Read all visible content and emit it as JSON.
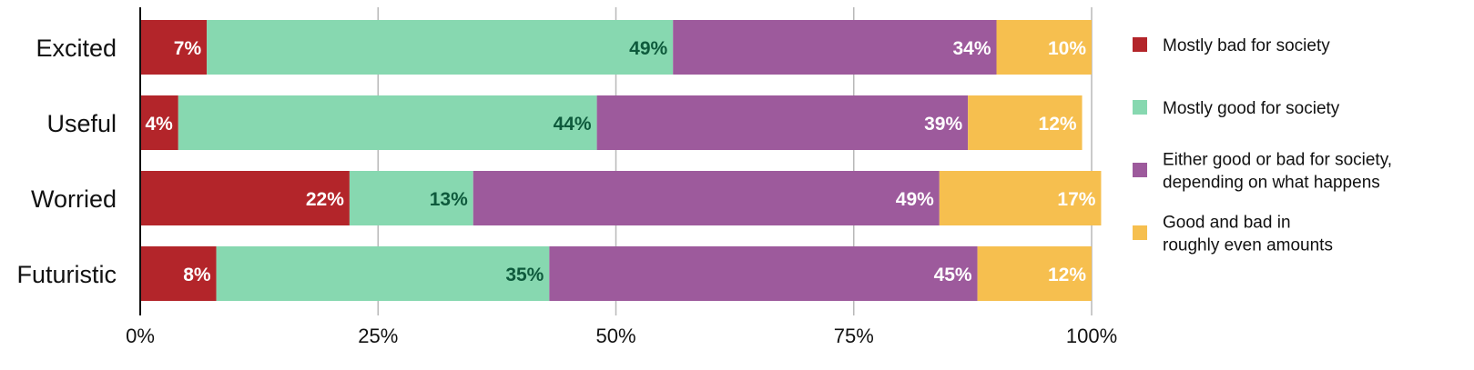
{
  "chart_data": {
    "type": "bar",
    "orientation": "horizontal",
    "stacked": true,
    "title": "",
    "xlabel": "",
    "ylabel": "",
    "xlim": [
      0,
      100
    ],
    "x_ticks": [
      "0%",
      "25%",
      "50%",
      "75%",
      "100%"
    ],
    "x_tick_values": [
      0,
      25,
      50,
      75,
      100
    ],
    "grid": true,
    "legend_position": "right",
    "categories": [
      "Excited",
      "Useful",
      "Worried",
      "Futuristic"
    ],
    "series": [
      {
        "name": "Mostly bad for society",
        "color": "#b3252a",
        "label_color": "#ffffff",
        "values": [
          7,
          4,
          22,
          8
        ],
        "labels": [
          "7%",
          "4%",
          "22%",
          "8%"
        ]
      },
      {
        "name": "Mostly good for society",
        "color": "#87d8b0",
        "label_color": "#0e5a3c",
        "values": [
          49,
          44,
          13,
          35
        ],
        "labels": [
          "49%",
          "44%",
          "13%",
          "35%"
        ]
      },
      {
        "name": "Either good or bad for society, depending on what happens",
        "legend_lines": [
          "Either good or bad for society,",
          "depending on what happens"
        ],
        "color": "#9d5a9c",
        "label_color": "#ffffff",
        "values": [
          34,
          39,
          49,
          45
        ],
        "labels": [
          "34%",
          "39%",
          "49%",
          "45%"
        ]
      },
      {
        "name": "Good and bad in roughly even amounts",
        "legend_lines": [
          "Good and bad in",
          "roughly even amounts"
        ],
        "color": "#f6bf4f",
        "label_color": "#ffffff",
        "values": [
          10,
          12,
          17,
          12
        ],
        "labels": [
          "10%",
          "12%",
          "17%",
          "12%"
        ]
      }
    ]
  }
}
